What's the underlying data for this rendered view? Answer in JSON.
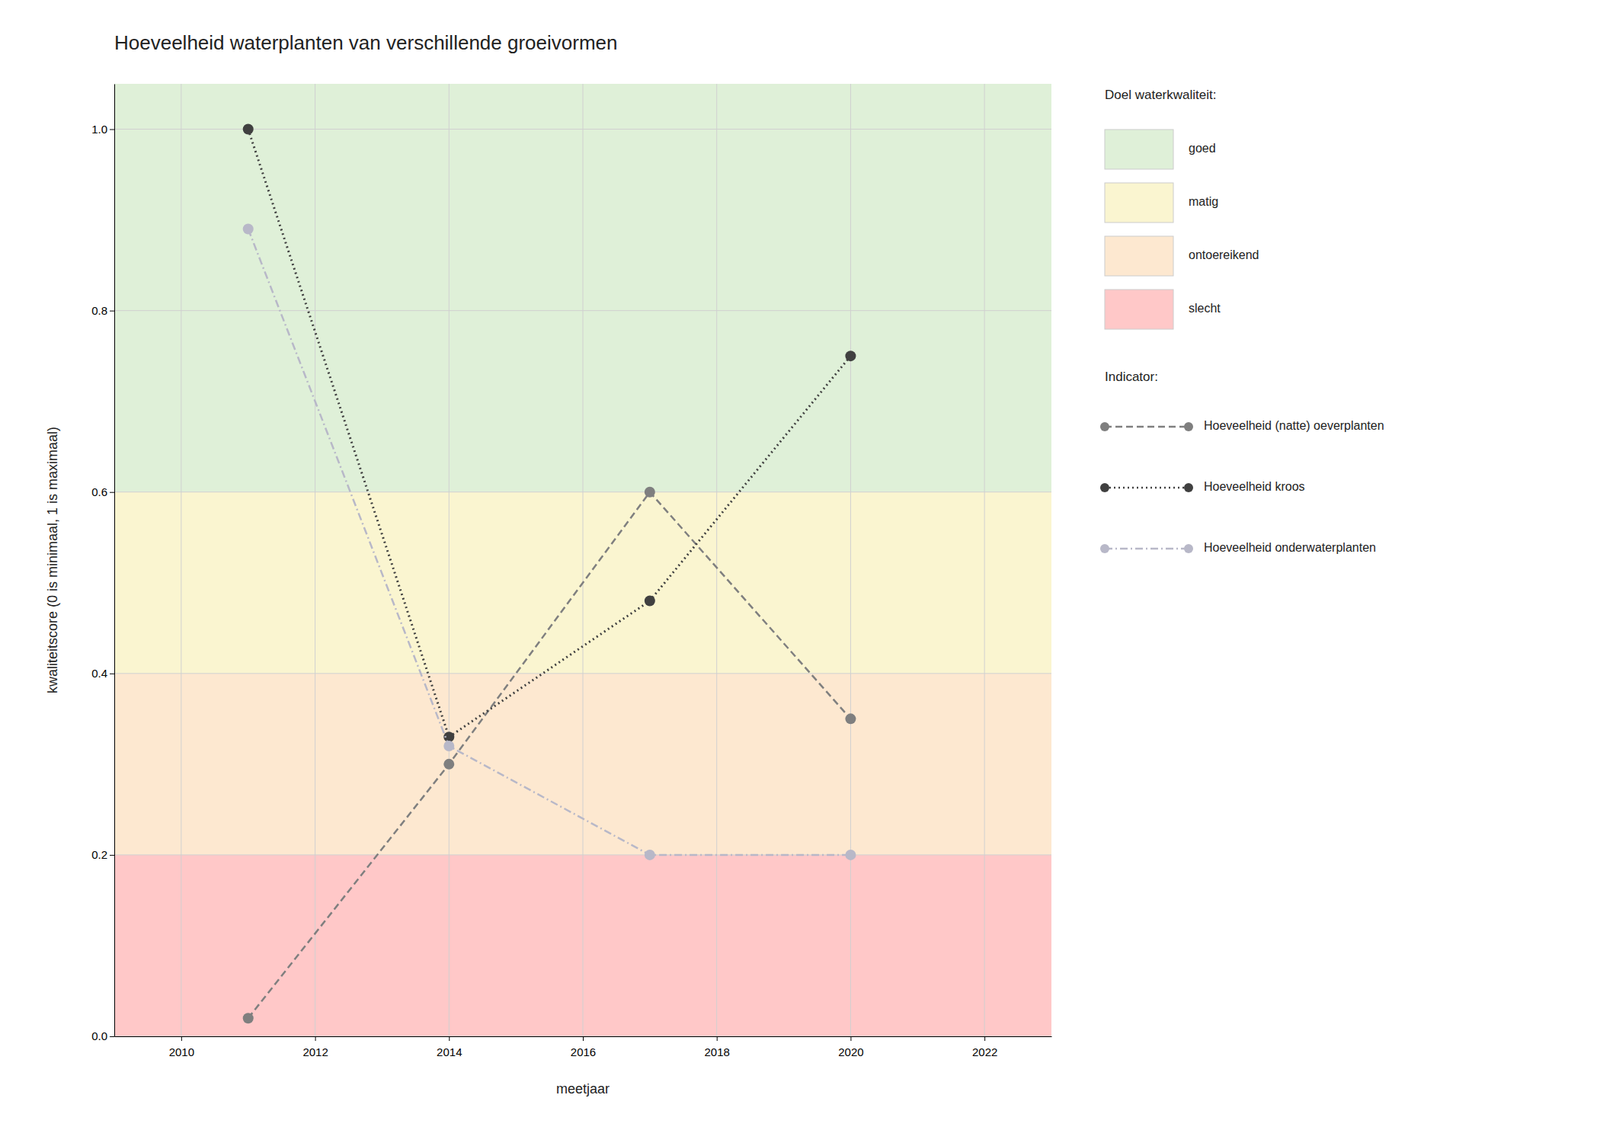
{
  "chart_data": {
    "type": "line",
    "title": "Hoeveelheid waterplanten van verschillende groeivormen",
    "x_label": "meetjaar",
    "y_label": "kwaliteitscore (0 is minimaal, 1 is maximaal)",
    "x": [
      2011,
      2014,
      2017,
      2020
    ],
    "series": [
      {
        "name": "Hoeveelheid (natte) oeverplanten",
        "color": "#7f7f7f",
        "line_style": "dashed",
        "marker": "circle",
        "values": [
          0.02,
          0.3,
          0.6,
          0.35
        ]
      },
      {
        "name": "Hoeveelheid kroos",
        "color": "#404040",
        "line_style": "dotted",
        "marker": "circle",
        "values": [
          1.0,
          0.33,
          0.48,
          0.75
        ]
      },
      {
        "name": "Hoeveelheid onderwaterplanten",
        "color": "#b8b8c8",
        "line_style": "dashdot",
        "marker": "circle",
        "values": [
          0.89,
          0.32,
          0.2,
          0.2
        ]
      }
    ],
    "bands": [
      {
        "name": "slecht",
        "color": "#ffc8c8",
        "range": [
          0.0,
          0.2
        ]
      },
      {
        "name": "ontoereikend",
        "color": "#fde8d0",
        "range": [
          0.2,
          0.4
        ]
      },
      {
        "name": "matig",
        "color": "#faf5d0",
        "range": [
          0.4,
          0.6
        ]
      },
      {
        "name": "goed",
        "color": "#dff0d8",
        "range": [
          0.6,
          1.05
        ]
      }
    ],
    "bands_legend_title": "Doel waterkwaliteit:",
    "series_legend_title": "Indicator:",
    "xlim": [
      2009,
      2023
    ],
    "ylim": [
      0.0,
      1.05
    ],
    "xticks": [
      2010,
      2012,
      2014,
      2016,
      2018,
      2020,
      2022
    ],
    "yticks": [
      {
        "value": 0.0,
        "label": "0.0"
      },
      0.2,
      0.4,
      0.6,
      0.8,
      {
        "value": 1.0,
        "label": "1.0"
      }
    ],
    "grid": true
  }
}
